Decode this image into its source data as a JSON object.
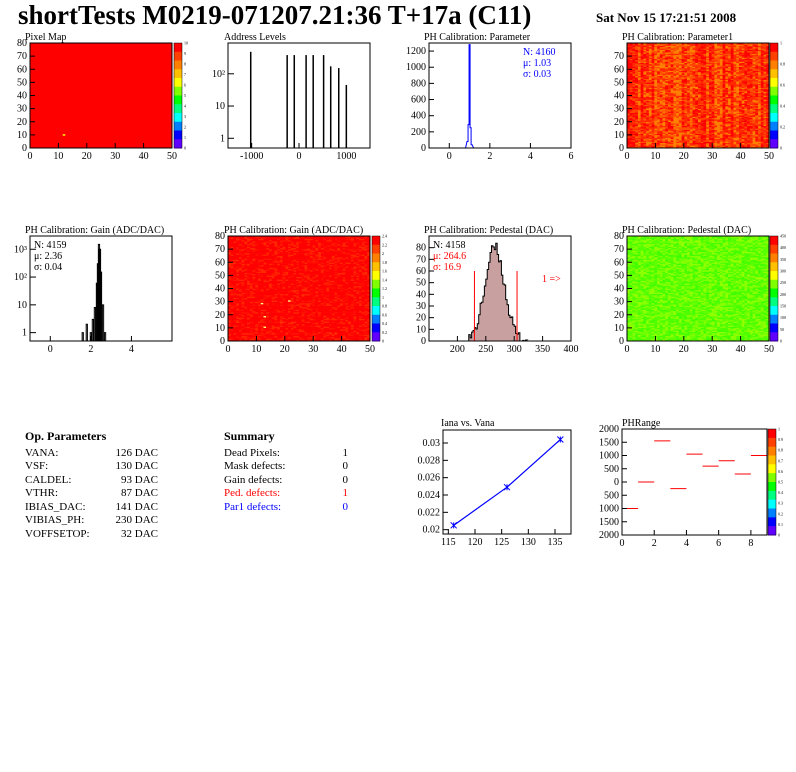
{
  "header": {
    "title": "shortTests M0219-071207.21:36 T+17a (C11)",
    "date": "Sat Nov 15 17:21:51 2008"
  },
  "colors": {
    "red": "#ff0000",
    "blue": "#0000ff",
    "black": "#000000",
    "hist_fill": "#c8a0a0"
  },
  "chart_data": [
    {
      "id": "pixel-map",
      "type": "heatmap",
      "title": "Pixel Map",
      "xlim": [
        0,
        52
      ],
      "ylim": [
        0,
        80
      ],
      "xticks": [
        "0",
        "10",
        "20",
        "30",
        "40",
        "50"
      ],
      "yticks": [
        "0",
        "10",
        "20",
        "30",
        "40",
        "50",
        "60",
        "70",
        "80"
      ],
      "palette_ticks": [
        "0",
        "1",
        "2",
        "3",
        "4",
        "5",
        "6",
        "7",
        "8",
        "9",
        "10"
      ],
      "fill": "uniform red (value 10), one yellow pixel near (12, 9)"
    },
    {
      "id": "address-levels",
      "type": "bar",
      "title": "Address Levels",
      "log_y": true,
      "xlim": [
        -1500,
        1500
      ],
      "xticks": [
        "-1000",
        "0",
        "1000"
      ],
      "yticks": [
        "1",
        "10",
        "10^2"
      ],
      "peaks_x": [
        -1020,
        -250,
        -100,
        150,
        300,
        520,
        670,
        840,
        1000
      ],
      "peaks_h": [
        480,
        380,
        380,
        380,
        380,
        380,
        170,
        150,
        45
      ]
    },
    {
      "id": "ph-calibration-parameter",
      "type": "bar",
      "title": "PH Calibration: Parameter",
      "xlim": [
        -1,
        6
      ],
      "ylim": [
        0,
        1300
      ],
      "xticks": [
        "0",
        "2",
        "4",
        "6"
      ],
      "yticks": [
        "0",
        "200",
        "400",
        "600",
        "800",
        "1000",
        "1200"
      ],
      "peak_x": [
        0.9,
        0.95,
        1.0,
        1.05,
        1.1
      ],
      "peak_y": [
        80,
        290,
        1280,
        250,
        40
      ],
      "stats": [
        "N: 4160",
        "μ: 1.03",
        "σ: 0.03"
      ]
    },
    {
      "id": "ph-calibration-parameter1",
      "type": "heatmap",
      "title": "PH Calibration: Parameter1",
      "xlim": [
        0,
        52
      ],
      "ylim": [
        0,
        80
      ],
      "xticks": [
        "0",
        "10",
        "20",
        "30",
        "40",
        "50"
      ],
      "yticks": [
        "0",
        "10",
        "20",
        "30",
        "40",
        "50",
        "60",
        "70"
      ],
      "palette_ticks": [
        "0",
        "0.2",
        "0.4",
        "0.6",
        "0.8",
        "1"
      ]
    },
    {
      "id": "ph-calibration-gain",
      "type": "bar",
      "title": "PH Calibration: Gain (ADC/DAC)",
      "log_y": true,
      "xlim": [
        -1,
        6
      ],
      "xticks": [
        "0",
        "2",
        "4"
      ],
      "yticks": [
        "1",
        "10",
        "10^2",
        "10^3"
      ],
      "bins_x": [
        1.6,
        1.8,
        2.0,
        2.1,
        2.2,
        2.3,
        2.35,
        2.4,
        2.45,
        2.5,
        2.6,
        2.7
      ],
      "bins_y": [
        1,
        2,
        1,
        3,
        8,
        60,
        300,
        1500,
        1000,
        150,
        10,
        1
      ],
      "stats": [
        "N: 4159",
        "μ: 2.36",
        "σ: 0.04"
      ]
    },
    {
      "id": "ph-calibration-gain-map",
      "type": "heatmap",
      "title": "PH Calibration: Gain (ADC/DAC)",
      "xlim": [
        0,
        52
      ],
      "ylim": [
        0,
        80
      ],
      "xticks": [
        "0",
        "10",
        "20",
        "30",
        "40",
        "50"
      ],
      "yticks": [
        "0",
        "10",
        "20",
        "30",
        "40",
        "50",
        "60",
        "70",
        "80"
      ],
      "palette_ticks": [
        "0",
        "0.2",
        "0.4",
        "0.6",
        "0.8",
        "1",
        "1.2",
        "1.4",
        "1.6",
        "1.8",
        "2",
        "2.2",
        "2.4"
      ]
    },
    {
      "id": "ph-calibration-pedestal",
      "type": "bar",
      "title": "PH Calibration: Pedestal (DAC)",
      "xlim": [
        150,
        400
      ],
      "ylim": [
        0,
        90
      ],
      "xticks": [
        "200",
        "250",
        "300",
        "350",
        "400"
      ],
      "yticks": [
        "0",
        "10",
        "20",
        "30",
        "40",
        "50",
        "60",
        "70",
        "80"
      ],
      "mean": 264.6,
      "sigma": 16.9,
      "peak": 80,
      "cut_lines": [
        230,
        305
      ],
      "stats": [
        "N: 4158",
        "μ: 264.6",
        "σ: 16.9"
      ],
      "annotation": "1 =>"
    },
    {
      "id": "ph-calibration-pedestal-map",
      "type": "heatmap",
      "title": "PH Calibration: Pedestal (DAC)",
      "xlim": [
        0,
        52
      ],
      "ylim": [
        0,
        80
      ],
      "xticks": [
        "0",
        "10",
        "20",
        "30",
        "40",
        "50"
      ],
      "yticks": [
        "0",
        "10",
        "20",
        "30",
        "40",
        "50",
        "60",
        "70",
        "80"
      ],
      "palette_ticks": [
        "0",
        "50",
        "100",
        "150",
        "200",
        "250",
        "300",
        "350",
        "400",
        "450"
      ]
    },
    {
      "id": "iana-vs-vana",
      "type": "line",
      "title": "Iana vs. Vana",
      "x": [
        116,
        126,
        136
      ],
      "y": [
        0.0205,
        0.0249,
        0.0304
      ],
      "xlim": [
        114,
        138
      ],
      "ylim": [
        0.0195,
        0.0315
      ],
      "xticks": [
        "115",
        "120",
        "125",
        "130",
        "135"
      ],
      "yticks": [
        "0.02",
        "0.022",
        "0.024",
        "0.026",
        "0.028",
        "0.03"
      ]
    },
    {
      "id": "ph-range",
      "type": "scatter",
      "title": "PHRange",
      "x": [
        0.5,
        1.5,
        2.5,
        3.5,
        4.5,
        5.5,
        6.5,
        7.5,
        8.5
      ],
      "y": [
        -1000,
        0,
        1550,
        -250,
        1050,
        600,
        800,
        300,
        1000
      ],
      "xlim": [
        0,
        9
      ],
      "ylim": [
        -2000,
        2000
      ],
      "xticks": [
        "0",
        "2",
        "4",
        "6",
        "8"
      ],
      "yticks": [
        "2000",
        "1500",
        "1000",
        "500",
        "0",
        "500",
        "1000",
        "1500",
        "2000"
      ],
      "palette_ticks": [
        "0",
        "0.1",
        "0.2",
        "0.3",
        "0.4",
        "0.5",
        "0.6",
        "0.7",
        "0.8",
        "0.9",
        "1"
      ]
    }
  ],
  "op_parameters": {
    "heading": "Op. Parameters",
    "rows": [
      {
        "label": "VANA:",
        "value": "126 DAC"
      },
      {
        "label": "VSF:",
        "value": "130 DAC"
      },
      {
        "label": "CALDEL:",
        "value": "93 DAC"
      },
      {
        "label": "VTHR:",
        "value": "87 DAC"
      },
      {
        "label": "IBIAS_DAC:",
        "value": "141 DAC"
      },
      {
        "label": "VIBIAS_PH:",
        "value": "230 DAC"
      },
      {
        "label": "VOFFSETOP:",
        "value": "32 DAC"
      }
    ]
  },
  "summary": {
    "heading": "Summary",
    "rows": [
      {
        "label": "Dead Pixels:",
        "value": "1",
        "color": "#000000"
      },
      {
        "label": "Mask defects:",
        "value": "0",
        "color": "#000000"
      },
      {
        "label": "Gain defects:",
        "value": "0",
        "color": "#000000"
      },
      {
        "label": "Ped. defects:",
        "value": "1",
        "color": "#ff0000"
      },
      {
        "label": "Par1 defects:",
        "value": "0",
        "color": "#0000ff"
      }
    ]
  }
}
